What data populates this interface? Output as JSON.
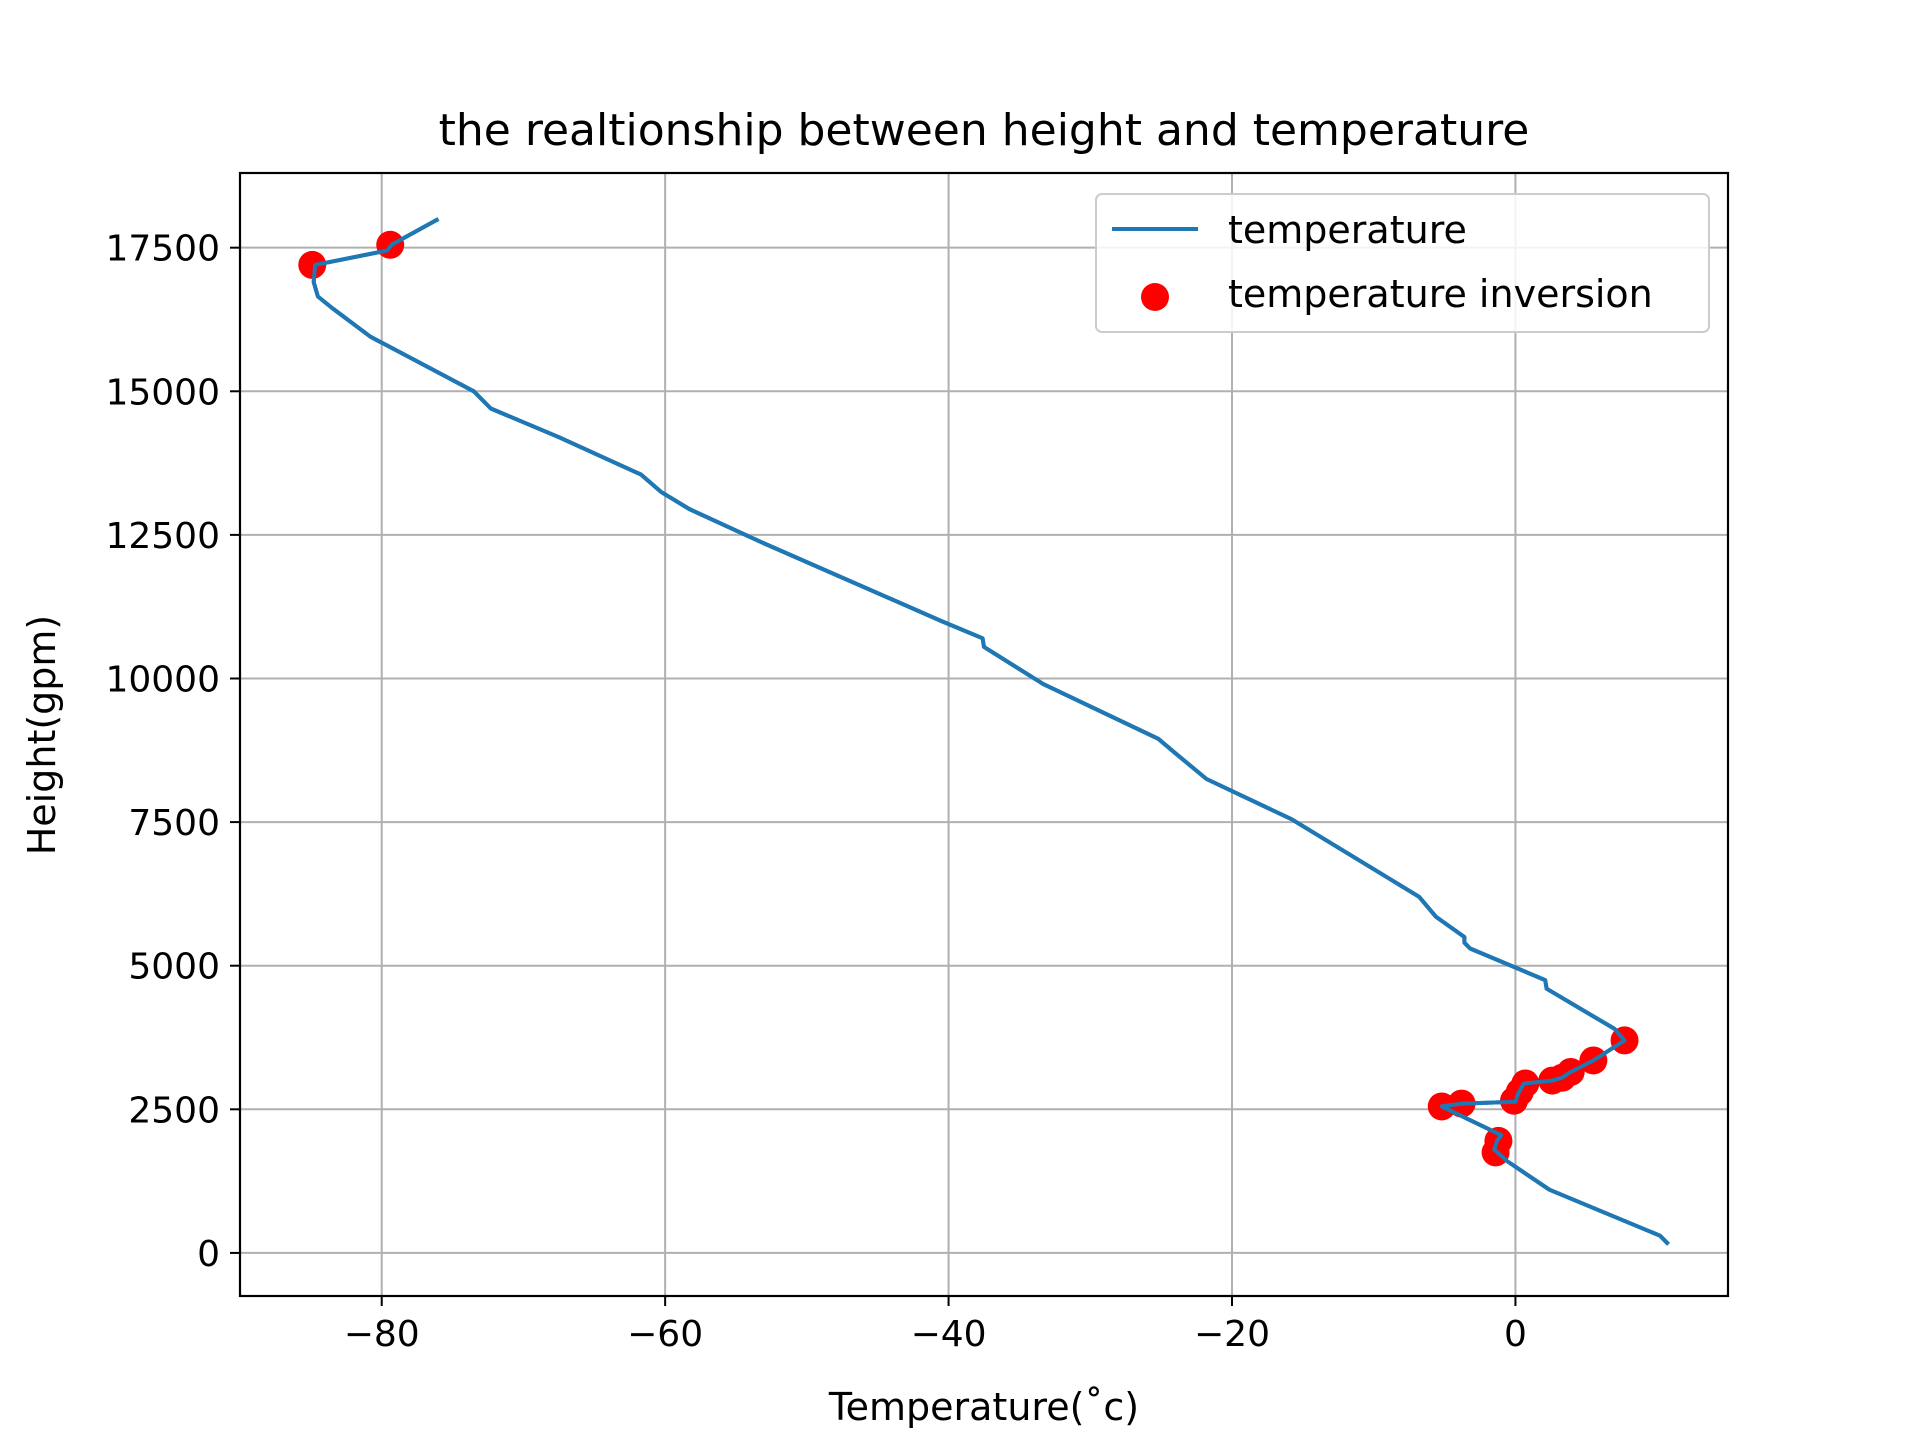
{
  "chart_data": {
    "type": "line",
    "title": "the realtionship between height and temperature",
    "xlabel": "Temperature(˚c)",
    "ylabel": "Height(gpm)",
    "xlim": [
      -90,
      15
    ],
    "ylim": [
      -750,
      18800
    ],
    "xticks": [
      -80,
      -60,
      -40,
      -20,
      0
    ],
    "xtick_labels": [
      "−80",
      "−60",
      "−40",
      "−20",
      "0"
    ],
    "yticks": [
      0,
      2500,
      5000,
      7500,
      10000,
      12500,
      15000,
      17500
    ],
    "ytick_labels": [
      "0",
      "2500",
      "5000",
      "7500",
      "10000",
      "12500",
      "15000",
      "17500"
    ],
    "grid": true,
    "legend_position": "upper-right",
    "series": [
      {
        "name": "temperature",
        "kind": "line",
        "color": "#1f77b4",
        "points": [
          [
            10.8,
            150
          ],
          [
            10.2,
            300
          ],
          [
            2.4,
            1100
          ],
          [
            -0.6,
            1600
          ],
          [
            -1.5,
            1800
          ],
          [
            -1.3,
            1950
          ],
          [
            -1.0,
            2050
          ],
          [
            -5.2,
            2550
          ],
          [
            -3.8,
            2600
          ],
          [
            0.0,
            2630
          ],
          [
            0.2,
            2780
          ],
          [
            0.6,
            2950
          ],
          [
            2.6,
            3000
          ],
          [
            3.3,
            3050
          ],
          [
            3.9,
            3150
          ],
          [
            5.5,
            3350
          ],
          [
            7.7,
            3700
          ],
          [
            7.0,
            3900
          ],
          [
            2.2,
            4600
          ],
          [
            2.1,
            4750
          ],
          [
            -3.2,
            5300
          ],
          [
            -3.6,
            5400
          ],
          [
            -3.6,
            5500
          ],
          [
            -5.6,
            5850
          ],
          [
            -6.8,
            6200
          ],
          [
            -15.8,
            7550
          ],
          [
            -21.8,
            8250
          ],
          [
            -24.0,
            8700
          ],
          [
            -25.2,
            8950
          ],
          [
            -33.3,
            9900
          ],
          [
            -37.5,
            10550
          ],
          [
            -37.6,
            10700
          ],
          [
            -40.5,
            11000
          ],
          [
            -53.0,
            12350
          ],
          [
            -58.3,
            12950
          ],
          [
            -60.3,
            13250
          ],
          [
            -61.7,
            13550
          ],
          [
            -67.5,
            14200
          ],
          [
            -72.3,
            14700
          ],
          [
            -73.5,
            15000
          ],
          [
            -80.8,
            15950
          ],
          [
            -83.5,
            16450
          ],
          [
            -84.5,
            16650
          ],
          [
            -84.8,
            16900
          ],
          [
            -84.7,
            17200
          ],
          [
            -79.6,
            17450
          ],
          [
            -79.3,
            17550
          ],
          [
            -76.0,
            18000
          ]
        ]
      },
      {
        "name": "temperature inversion",
        "kind": "scatter",
        "color": "#ff0000",
        "points": [
          [
            -1.4,
            1750
          ],
          [
            -1.2,
            1950
          ],
          [
            -5.2,
            2550
          ],
          [
            -3.8,
            2600
          ],
          [
            -0.1,
            2650
          ],
          [
            0.3,
            2800
          ],
          [
            0.7,
            2950
          ],
          [
            2.6,
            3000
          ],
          [
            3.3,
            3050
          ],
          [
            3.9,
            3150
          ],
          [
            5.5,
            3350
          ],
          [
            7.7,
            3700
          ],
          [
            -84.9,
            17200
          ],
          [
            -79.4,
            17550
          ]
        ]
      }
    ]
  }
}
